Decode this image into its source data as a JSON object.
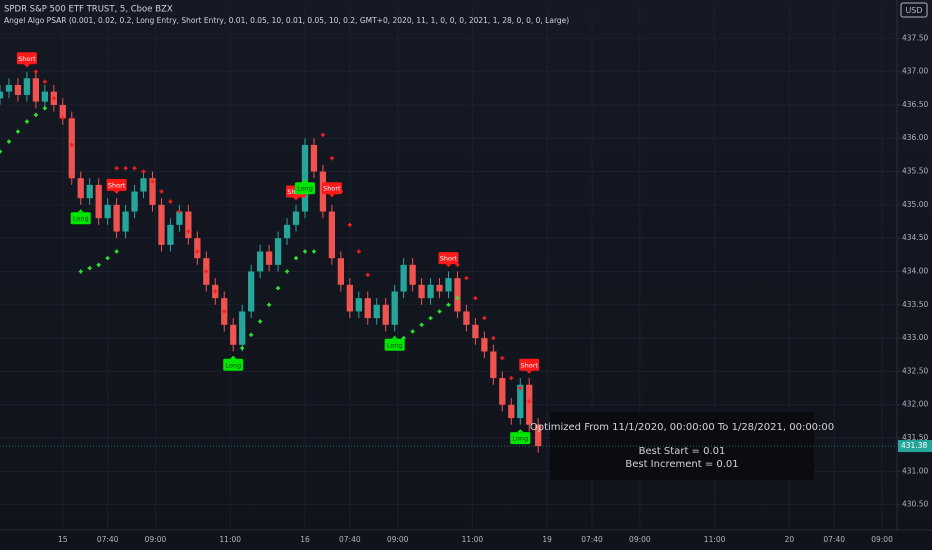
{
  "chart_data": {
    "type": "candlestick",
    "title": "SPDR S&P 500 ETF TRUST, 5, Cboe BZX",
    "subtitle": "Angel Algo PSAR (0.001, 0.02, 0.2, Long Entry, Short Entry, 0.01, 0.05, 10, 0.01, 0.05, 10, 0.2, GMT+0, 2020, 11, 1, 0, 0, 0, 2021, 1, 28, 0, 0, 0, Large)",
    "currency": "USD",
    "up_color": "#26a69a",
    "down_color": "#ef5350",
    "grid": true,
    "x": [
      0,
      3,
      6,
      9,
      12,
      15,
      18,
      21,
      24,
      27,
      30,
      33,
      36,
      39,
      42,
      45,
      48,
      51,
      54,
      57,
      60,
      63,
      66,
      69,
      72,
      75,
      78,
      81,
      84,
      87,
      90,
      93,
      96,
      99,
      102,
      105,
      108,
      111,
      114,
      117,
      120,
      123,
      126,
      129,
      132,
      135,
      138,
      141,
      144,
      147,
      150,
      153,
      156,
      159,
      162,
      165,
      168,
      171,
      174,
      177,
      180
    ],
    "open": [
      436.6,
      436.7,
      436.8,
      436.65,
      436.9,
      436.55,
      436.7,
      436.5,
      436.3,
      435.4,
      435.1,
      435.3,
      434.8,
      435.0,
      434.6,
      434.9,
      435.2,
      435.4,
      435.0,
      434.4,
      434.7,
      434.9,
      434.5,
      434.2,
      433.8,
      433.6,
      433.2,
      432.9,
      433.4,
      434.0,
      434.3,
      434.1,
      434.5,
      434.7,
      434.9,
      435.9,
      435.5,
      434.9,
      434.2,
      433.8,
      433.4,
      433.6,
      433.3,
      433.5,
      433.2,
      433.7,
      434.1,
      433.8,
      433.6,
      433.8,
      433.7,
      433.9,
      433.4,
      433.2,
      433.0,
      432.8,
      432.4,
      432.0,
      431.8,
      432.3,
      431.7
    ],
    "high": [
      436.8,
      436.9,
      436.9,
      437.0,
      437.0,
      436.8,
      436.8,
      436.6,
      436.4,
      435.5,
      435.4,
      435.4,
      435.1,
      435.1,
      435.0,
      435.3,
      435.5,
      435.5,
      435.1,
      434.8,
      435.0,
      435.0,
      434.6,
      434.3,
      433.9,
      433.7,
      433.3,
      433.5,
      434.1,
      434.4,
      434.4,
      434.6,
      434.8,
      435.0,
      436.0,
      436.0,
      435.6,
      435.0,
      434.3,
      433.9,
      433.7,
      433.7,
      433.6,
      433.6,
      433.8,
      434.2,
      434.2,
      433.9,
      433.9,
      433.9,
      434.0,
      434.0,
      433.5,
      433.3,
      433.1,
      432.9,
      432.5,
      432.1,
      432.4,
      432.4,
      431.8
    ],
    "low": [
      436.5,
      436.6,
      436.55,
      436.55,
      436.45,
      436.45,
      436.4,
      436.2,
      435.3,
      435.0,
      435.0,
      434.7,
      434.7,
      434.5,
      434.5,
      434.8,
      435.1,
      434.9,
      434.3,
      434.3,
      434.6,
      434.4,
      434.1,
      433.7,
      433.5,
      433.1,
      432.8,
      432.8,
      433.3,
      433.9,
      434.0,
      434.0,
      434.4,
      434.6,
      434.8,
      435.4,
      434.8,
      434.1,
      433.7,
      433.3,
      433.3,
      433.2,
      433.2,
      433.1,
      433.1,
      433.6,
      433.7,
      433.5,
      433.5,
      433.6,
      433.6,
      433.3,
      433.1,
      432.9,
      432.7,
      432.3,
      431.9,
      431.7,
      431.7,
      431.6,
      431.28
    ],
    "close": [
      436.7,
      436.8,
      436.65,
      436.9,
      436.55,
      436.7,
      436.5,
      436.3,
      435.4,
      435.1,
      435.3,
      434.8,
      435.0,
      434.6,
      434.9,
      435.2,
      435.4,
      435.0,
      434.4,
      434.7,
      434.9,
      434.5,
      434.2,
      433.8,
      433.6,
      433.2,
      432.9,
      433.4,
      434.0,
      434.3,
      434.1,
      434.5,
      434.7,
      434.9,
      435.9,
      435.5,
      434.9,
      434.2,
      433.8,
      433.4,
      433.6,
      433.3,
      433.5,
      433.2,
      433.7,
      434.1,
      433.8,
      433.6,
      433.8,
      433.7,
      433.9,
      433.4,
      433.2,
      433.0,
      432.8,
      432.4,
      432.0,
      431.8,
      432.3,
      431.7,
      431.38
    ],
    "series": [
      {
        "color": "#2ee82e",
        "values": [
          435.8,
          435.95,
          436.1,
          436.25,
          436.35,
          436.45,
          null,
          null,
          null,
          434.0,
          434.05,
          434.1,
          434.2,
          434.3,
          null,
          null,
          null,
          null,
          null,
          null,
          null,
          null,
          null,
          null,
          null,
          null,
          432.7,
          432.85,
          433.05,
          433.25,
          433.5,
          433.75,
          434.0,
          434.2,
          434.3,
          434.3,
          null,
          null,
          null,
          null,
          null,
          null,
          null,
          null,
          432.9,
          433.0,
          433.1,
          433.2,
          433.3,
          433.4,
          433.5,
          433.6,
          null,
          null,
          null,
          null,
          null,
          null,
          431.45,
          null,
          null
        ]
      },
      {
        "color": "#f02020",
        "values": [
          null,
          null,
          null,
          437.1,
          437.0,
          436.85,
          436.6,
          436.3,
          435.9,
          null,
          null,
          null,
          null,
          435.55,
          435.55,
          435.55,
          435.5,
          435.35,
          435.2,
          435.05,
          434.9,
          434.6,
          434.3,
          434.0,
          433.7,
          433.4,
          null,
          null,
          null,
          null,
          null,
          null,
          null,
          null,
          null,
          null,
          436.05,
          435.7,
          435.2,
          434.7,
          434.3,
          433.95,
          null,
          null,
          null,
          null,
          null,
          null,
          null,
          null,
          434.2,
          434.1,
          433.9,
          433.6,
          433.3,
          433.0,
          432.7,
          432.4,
          432.25,
          432.05,
          null
        ]
      }
    ],
    "signals": [
      {
        "x": 9,
        "y": 437.05,
        "label": "Short"
      },
      {
        "x": 27,
        "y": 434.95,
        "label": "Long"
      },
      {
        "x": 39,
        "y": 435.15,
        "label": "Short"
      },
      {
        "x": 78,
        "y": 432.75,
        "label": "Long"
      },
      {
        "x": 99,
        "y": 435.05,
        "label": "Short"
      },
      {
        "x": 102,
        "y": 435.4,
        "label": "Long"
      },
      {
        "x": 111,
        "y": 435.1,
        "label": "Short"
      },
      {
        "x": 132,
        "y": 433.05,
        "label": "Long"
      },
      {
        "x": 150,
        "y": 434.05,
        "label": "Short"
      },
      {
        "x": 174,
        "y": 431.65,
        "label": "Long"
      },
      {
        "x": 177,
        "y": 432.45,
        "label": "Short"
      }
    ],
    "last_price": {
      "value": 431.38,
      "label": "431.38"
    },
    "info_box": [
      "Optimized From 11/1/2020, 00:00:00 To 1/28/2021, 00:00:00",
      "Best Start = 0.01",
      "Best Increment = 0.01"
    ],
    "xlim": [
      0,
      300
    ],
    "xticks": [
      {
        "value": 21,
        "label": "15"
      },
      {
        "value": 36,
        "label": "07:40"
      },
      {
        "value": 52,
        "label": "09:00"
      },
      {
        "value": 77,
        "label": "11:00"
      },
      {
        "value": 102,
        "label": "16"
      },
      {
        "value": 117,
        "label": "07:40"
      },
      {
        "value": 133,
        "label": "09:00"
      },
      {
        "value": 158,
        "label": "11:00"
      },
      {
        "value": 183,
        "label": "19"
      },
      {
        "value": 198,
        "label": "07:40"
      },
      {
        "value": 214,
        "label": "09:00"
      },
      {
        "value": 239,
        "label": "11:00"
      },
      {
        "value": 264,
        "label": "20"
      },
      {
        "value": 279,
        "label": "07:40"
      },
      {
        "value": 295,
        "label": "09:00"
      }
    ],
    "ylim": [
      430.15,
      438.0
    ],
    "yticks": [
      {
        "value": 437.5,
        "label": "437.50"
      },
      {
        "value": 437.0,
        "label": "437.00"
      },
      {
        "value": 436.5,
        "label": "436.50"
      },
      {
        "value": 436.0,
        "label": "436.00"
      },
      {
        "value": 435.5,
        "label": "435.50"
      },
      {
        "value": 435.0,
        "label": "435.00"
      },
      {
        "value": 434.5,
        "label": "434.50"
      },
      {
        "value": 434.0,
        "label": "434.00"
      },
      {
        "value": 433.5,
        "label": "433.50"
      },
      {
        "value": 433.0,
        "label": "433.00"
      },
      {
        "value": 432.5,
        "label": "432.50"
      },
      {
        "value": 432.0,
        "label": "432.00"
      },
      {
        "value": 431.5,
        "label": "431.50"
      },
      {
        "value": 431.0,
        "label": "431.00"
      },
      {
        "value": 430.5,
        "label": "430.50"
      }
    ]
  }
}
